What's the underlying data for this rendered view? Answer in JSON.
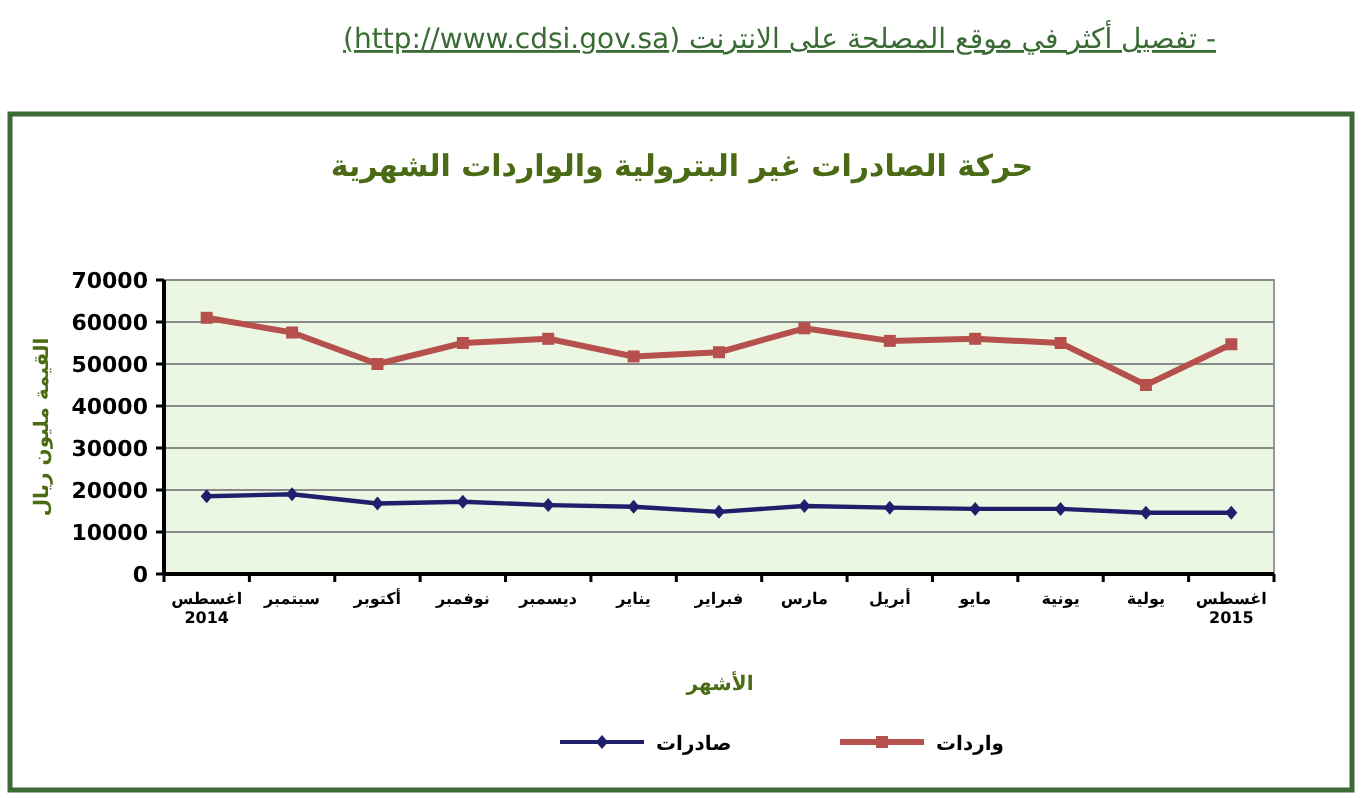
{
  "chart_data": {
    "type": "line",
    "title": "حركة الصادرات غير البترولية والواردات الشهرية",
    "xlabel": "الأشهر",
    "ylabel": "القيمة مليون ريال",
    "annotations": [
      "- تفصيل أكثر في موقع المصلحة على الانترنت (http://www.cdsi.gov.sa)"
    ],
    "categories": [
      "اغسطس\n2014",
      "سبتمبر",
      "أكتوبر",
      "نوفمبر",
      "ديسمبر",
      "يناير",
      "فبراير",
      "مارس",
      "أبريل",
      "مايو",
      "يونية",
      "يولية",
      "اغسطس\n2015"
    ],
    "series": [
      {
        "name": "صادرات",
        "color": "#1f1f6b",
        "marker": "diamond",
        "values": [
          18500,
          19000,
          16800,
          17200,
          16400,
          16000,
          14800,
          16200,
          15800,
          15500,
          15500,
          14600,
          14600
        ]
      },
      {
        "name": "واردات",
        "color": "#b5504c",
        "marker": "square",
        "values": [
          61000,
          57500,
          50000,
          55000,
          56000,
          51800,
          52800,
          58500,
          55500,
          56000,
          55000,
          45000,
          54700
        ]
      }
    ],
    "ylim": [
      0,
      70000
    ],
    "yticks": [
      0,
      10000,
      20000,
      30000,
      40000,
      50000,
      60000,
      70000
    ],
    "grid": "y",
    "legend": "bottom",
    "line_style": "solid"
  }
}
